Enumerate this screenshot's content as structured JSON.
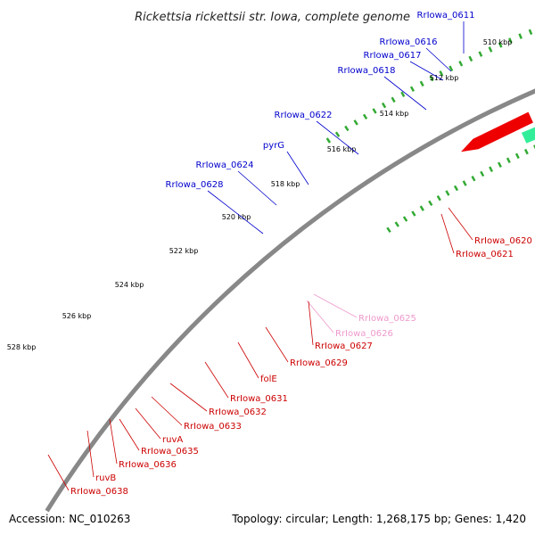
{
  "title": "Rickettsia rickettsii str. Iowa, complete genome",
  "footer": {
    "accession": "Accession: NC_010263",
    "summary": "Topology: circular; Length: 1,268,175 bp; Genes: 1,420"
  },
  "ticks": [
    "510 kbp",
    "512 kbp",
    "514 kbp",
    "516 kbp",
    "518 kbp",
    "520 kbp",
    "522 kbp",
    "524 kbp",
    "526 kbp",
    "528 kbp"
  ],
  "genes_forward": [
    {
      "name": "RrIowa_0611",
      "color": "#0000cc"
    },
    {
      "name": "RrIowa_0616",
      "color": "#0000cc"
    },
    {
      "name": "RrIowa_0617",
      "color": "#0000cc"
    },
    {
      "name": "RrIowa_0618",
      "color": "#0000cc"
    },
    {
      "name": "RrIowa_0622",
      "color": "#0000cc"
    },
    {
      "name": "pyrG",
      "color": "#0000cc"
    },
    {
      "name": "RrIowa_0624",
      "color": "#0000cc"
    },
    {
      "name": "RrIowa_0628",
      "color": "#0000cc"
    }
  ],
  "genes_reverse": [
    {
      "name": "RrIowa_0620",
      "color": "#cc0000"
    },
    {
      "name": "RrIowa_0621",
      "color": "#cc0000"
    },
    {
      "name": "RrIowa_0625",
      "color": "#ee99cc"
    },
    {
      "name": "RrIowa_0626",
      "color": "#ee99cc"
    },
    {
      "name": "RrIowa_0627",
      "color": "#cc0000"
    },
    {
      "name": "RrIowa_0629",
      "color": "#cc0000"
    },
    {
      "name": "folE",
      "color": "#cc0000"
    },
    {
      "name": "RrIowa_0631",
      "color": "#cc0000"
    },
    {
      "name": "RrIowa_0632",
      "color": "#cc0000"
    },
    {
      "name": "RrIowa_0633",
      "color": "#cc0000"
    },
    {
      "name": "ruvA",
      "color": "#cc0000"
    },
    {
      "name": "RrIowa_0635",
      "color": "#cc0000"
    },
    {
      "name": "RrIowa_0636",
      "color": "#cc0000"
    },
    {
      "name": "ruvB",
      "color": "#cc0000"
    },
    {
      "name": "RrIowa_0638",
      "color": "#cc0000"
    }
  ],
  "colors": {
    "backbone": "#888888",
    "tick_major": "#006600",
    "tick_minor": "#33aa33",
    "fwd_cds": "#0000dd",
    "rev_cds": "#ee0000",
    "cyan": "#22dddd",
    "olive": "#6b8e23",
    "pink": "#ff66bb",
    "magenta": "#ee1188",
    "salmon": "#f08080",
    "gray": "#555555",
    "green": "#33ee99"
  }
}
